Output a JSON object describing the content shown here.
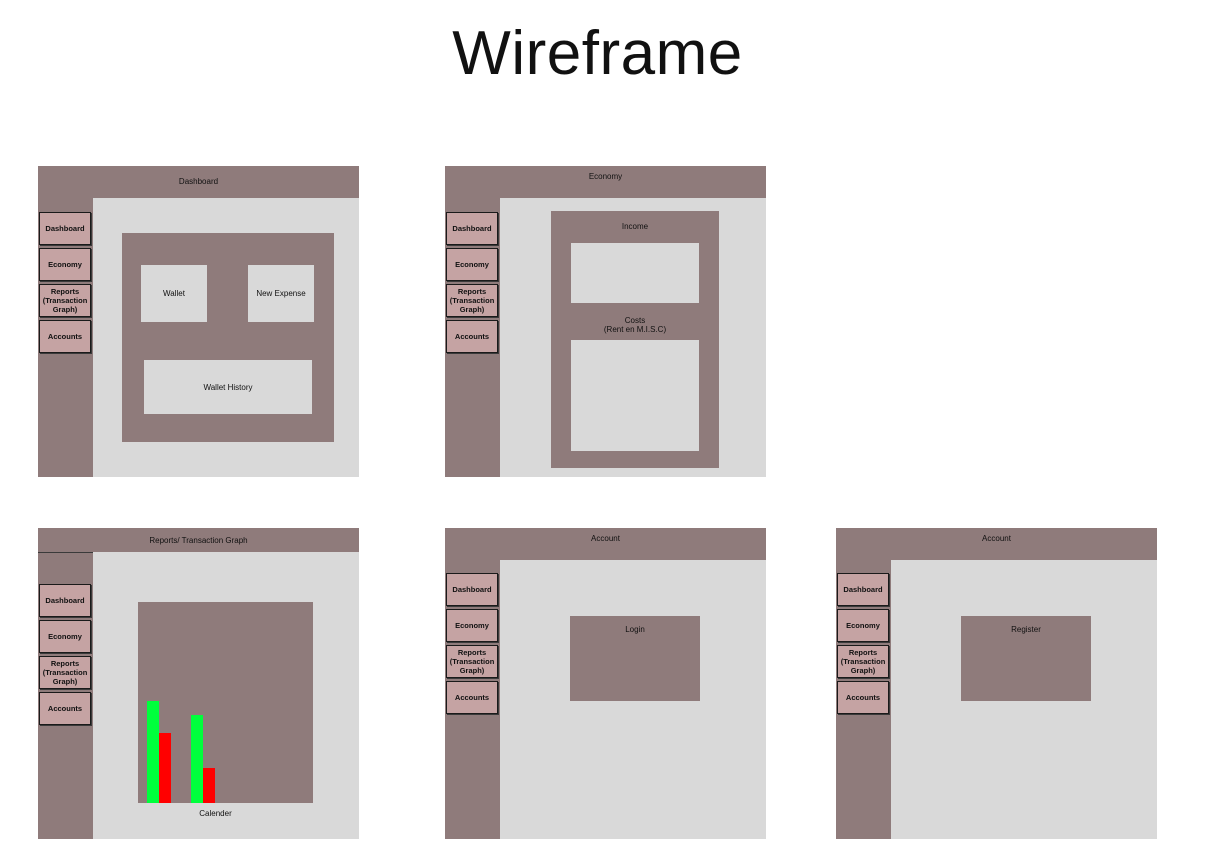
{
  "page": {
    "title": "Wireframe"
  },
  "nav": {
    "dashboard": "Dashboard",
    "economy": "Economy",
    "reports": "Reports\n(Transaction\nGraph)",
    "accounts": "Accounts"
  },
  "frames": {
    "dashboard": {
      "header": "Dashboard",
      "wallet": "Wallet",
      "new_expense": "New Expense",
      "wallet_history": "Wallet History"
    },
    "economy": {
      "header": "Economy",
      "income": "Income",
      "costs": "Costs\n(Rent en M.I.S.C)"
    },
    "reports": {
      "header": "Reports/ Transaction Graph",
      "calendar": "Calender"
    },
    "login": {
      "header": "Account",
      "box": "Login"
    },
    "register": {
      "header": "Account",
      "box": "Register"
    }
  },
  "colors": {
    "brand": "#8f7b7b",
    "nav_button": "#c5a3a3",
    "content": "#d9d9d9",
    "income": "#00ff3c",
    "expense": "#ff0000"
  },
  "chart_data": {
    "type": "bar",
    "categories": [
      "1",
      "2"
    ],
    "series": [
      {
        "values": [
          100,
          86
        ]
      },
      {
        "values": [
          69,
          34
        ]
      }
    ],
    "xlabel": "Calender",
    "ylim": [
      0,
      100
    ]
  }
}
